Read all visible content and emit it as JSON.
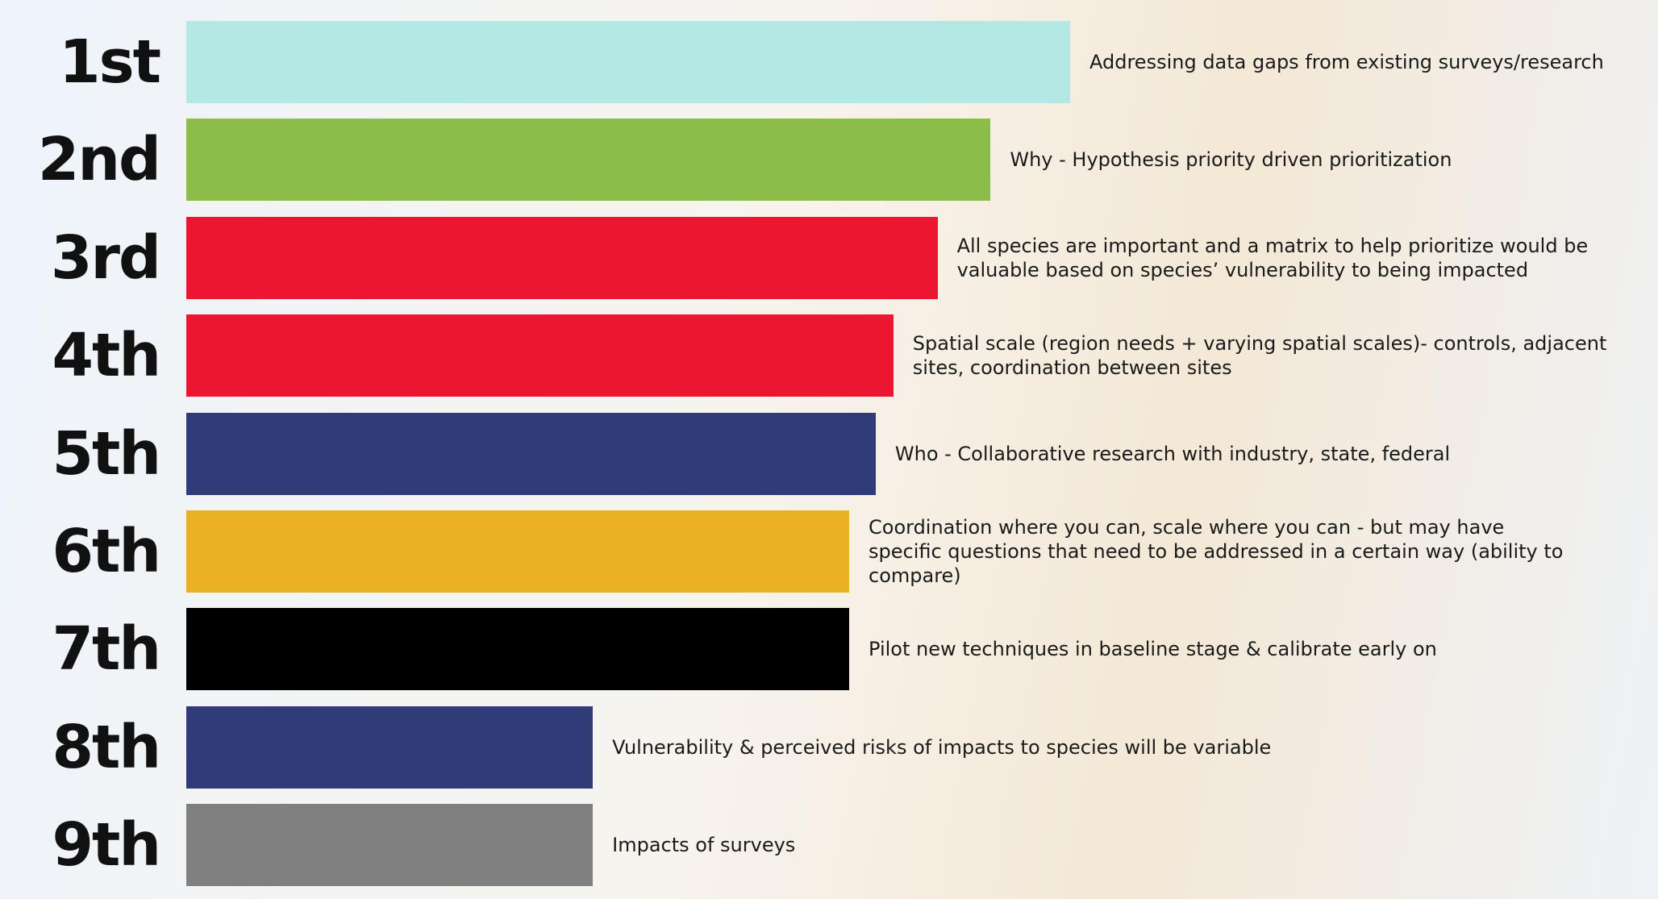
{
  "chart_data": {
    "type": "bar",
    "orientation": "horizontal",
    "categories": [
      "1st",
      "2nd",
      "3rd",
      "4th",
      "5th",
      "6th",
      "7th",
      "8th",
      "9th"
    ],
    "values": [
      100,
      91,
      85,
      80,
      78,
      75,
      75,
      46,
      46
    ],
    "colors": [
      "#b3e8e4",
      "#8cbd4a",
      "#ec1631",
      "#ec1631",
      "#303b79",
      "#eab122",
      "#000000",
      "#303b79",
      "#808080"
    ],
    "annotations": [
      "Addressing data gaps from existing surveys/research",
      "Why - Hypothesis priority driven prioritization",
      "All species are important and a matrix to help prioritize would be valuable based on species’ vulnerability to being impacted",
      "Spatial scale (region needs + varying spatial scales)- controls, adjacent sites, coordination between sites",
      "Who - Collaborative research with industry, state, federal",
      "Coordination where you can, scale where you can - but may have specific questions that need to be addressed in a certain way (ability to compare)",
      "Pilot new techniques in baseline stage & calibrate early on",
      "Vulnerability & perceived risks of impacts to species will be variable",
      "Impacts of surveys"
    ],
    "xlim": [
      0,
      100
    ]
  }
}
